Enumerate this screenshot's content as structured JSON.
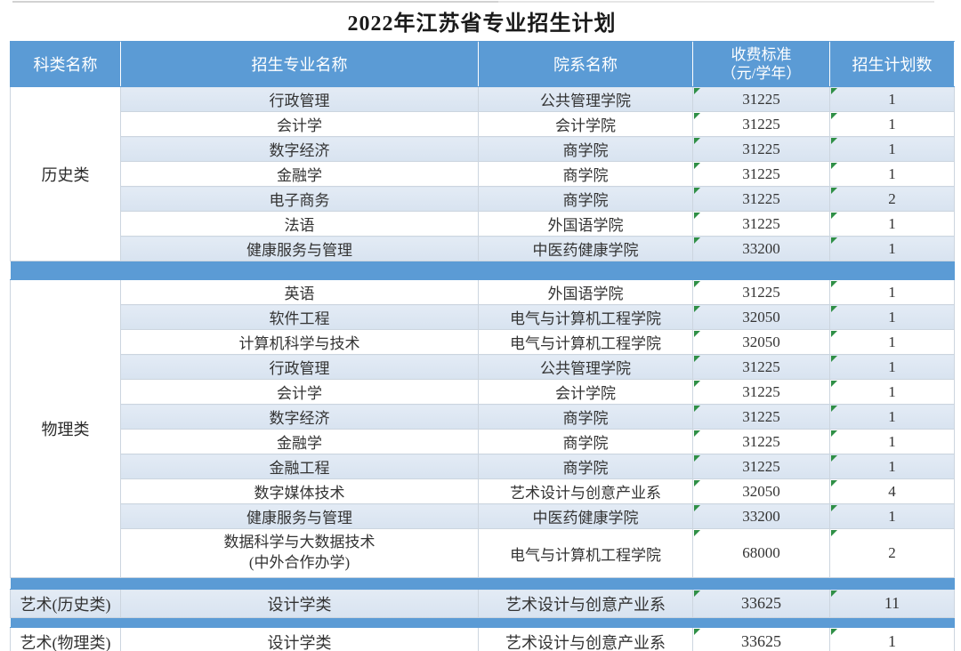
{
  "page": {
    "title": "2022年江苏省专业招生计划"
  },
  "table": {
    "headers": {
      "category": "科类名称",
      "major": "招生专业名称",
      "department": "院系名称",
      "fee_line1": "收费标准",
      "fee_line2": "（元/学年）",
      "plan": "招生计划数"
    },
    "flag_icon_color": "#2f8f46",
    "accent_blue": "#5b9bd5",
    "row_alt_blue": "#dce6f1",
    "sections": [
      {
        "category": "历史类",
        "rows": [
          {
            "major": "行政管理",
            "department": "公共管理学院",
            "fee": "31225",
            "plan": "1"
          },
          {
            "major": "会计学",
            "department": "会计学院",
            "fee": "31225",
            "plan": "1"
          },
          {
            "major": "数字经济",
            "department": "商学院",
            "fee": "31225",
            "plan": "1"
          },
          {
            "major": "金融学",
            "department": "商学院",
            "fee": "31225",
            "plan": "1"
          },
          {
            "major": "电子商务",
            "department": "商学院",
            "fee": "31225",
            "plan": "2"
          },
          {
            "major": "法语",
            "department": "外国语学院",
            "fee": "31225",
            "plan": "1"
          },
          {
            "major": "健康服务与管理",
            "department": "中医药健康学院",
            "fee": "33200",
            "plan": "1"
          }
        ]
      },
      {
        "category": "物理类",
        "rows": [
          {
            "major": "英语",
            "department": "外国语学院",
            "fee": "31225",
            "plan": "1"
          },
          {
            "major": "软件工程",
            "department": "电气与计算机工程学院",
            "fee": "32050",
            "plan": "1"
          },
          {
            "major": "计算机科学与技术",
            "department": "电气与计算机工程学院",
            "fee": "32050",
            "plan": "1"
          },
          {
            "major": "行政管理",
            "department": "公共管理学院",
            "fee": "31225",
            "plan": "1"
          },
          {
            "major": "会计学",
            "department": "会计学院",
            "fee": "31225",
            "plan": "1"
          },
          {
            "major": "数字经济",
            "department": "商学院",
            "fee": "31225",
            "plan": "1"
          },
          {
            "major": "金融学",
            "department": "商学院",
            "fee": "31225",
            "plan": "1"
          },
          {
            "major": "金融工程",
            "department": "商学院",
            "fee": "31225",
            "plan": "1"
          },
          {
            "major": "数字媒体技术",
            "department": "艺术设计与创意产业系",
            "fee": "32050",
            "plan": "4"
          },
          {
            "major": "健康服务与管理",
            "department": "中医药健康学院",
            "fee": "33200",
            "plan": "1"
          },
          {
            "major": "数据科学与大数据技术",
            "major2": "(中外合作办学)",
            "department": "电气与计算机工程学院",
            "fee": "68000",
            "plan": "2",
            "tall": true
          }
        ]
      },
      {
        "category": "艺术(历史类)",
        "rows": [
          {
            "major": "设计学类",
            "department": "艺术设计与创意产业系",
            "fee": "33625",
            "plan": "11"
          }
        ]
      },
      {
        "category": "艺术(物理类)",
        "rows": [
          {
            "major": "设计学类",
            "department": "艺术设计与创意产业系",
            "fee": "33625",
            "plan": "1"
          }
        ]
      }
    ]
  }
}
